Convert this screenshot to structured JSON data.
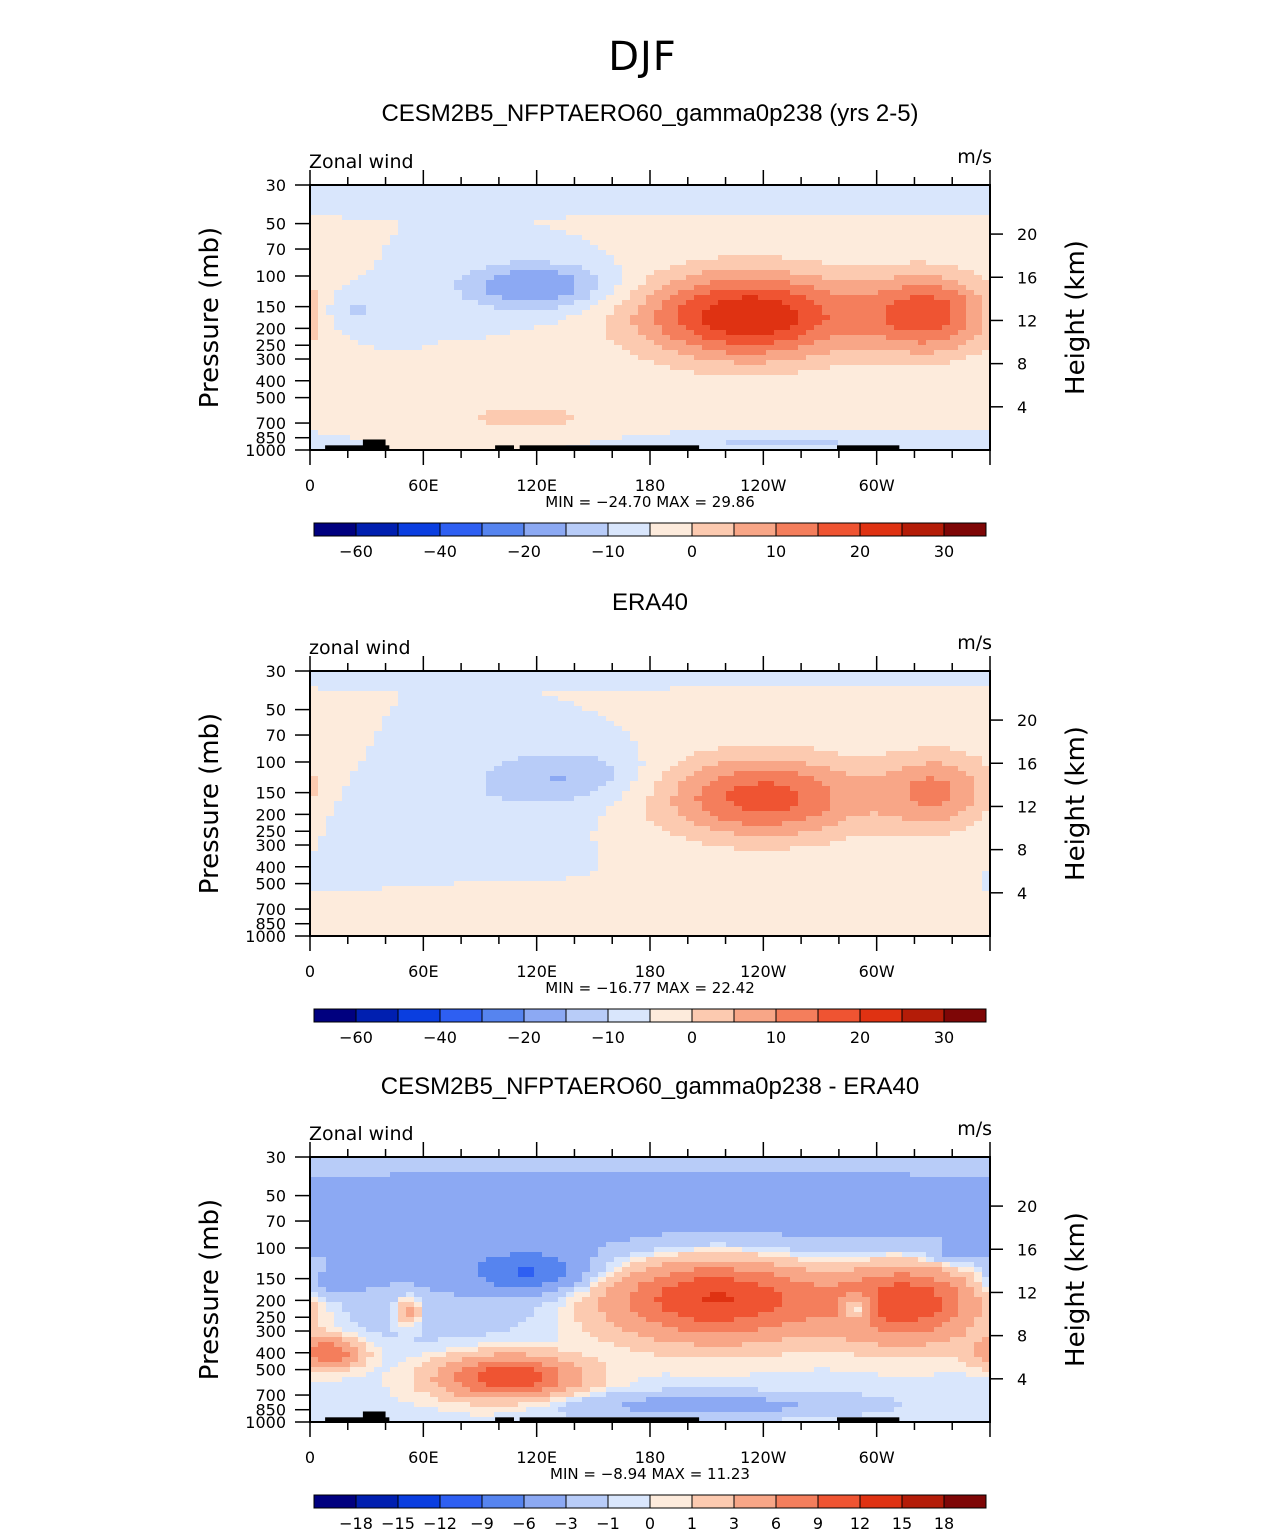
{
  "figure": {
    "title": "DJF",
    "colors": {
      "wind_scale": [
        "#00007f",
        "#001fb0",
        "#0a3ee0",
        "#2e5ff2",
        "#5684ef",
        "#8ca9f3",
        "#b8ccf8",
        "#d9e6fc",
        "#fdebdc",
        "#fccab0",
        "#f8a687",
        "#f47e5c",
        "#ef5432",
        "#df3212",
        "#b41c08",
        "#7e0606"
      ],
      "diff_scale": [
        "#00007f",
        "#001fb0",
        "#0a3ee0",
        "#2e5ff2",
        "#5684ef",
        "#8ca9f3",
        "#b8ccf8",
        "#d9e6fc",
        "#fdebdc",
        "#fccab0",
        "#f8a687",
        "#f47e5c",
        "#ef5432",
        "#df3212",
        "#b41c08",
        "#7e0606"
      ],
      "topography": "#000000"
    }
  },
  "chart_data": [
    {
      "type": "heatmap",
      "title": "CESM2B5_NFPTAERO60_gamma0p238 (yrs 2-5)",
      "left_label": "Zonal wind",
      "right_label": "m/s",
      "ylabel": "Pressure (mb)",
      "ylabel2": "Height (km)",
      "xlabel": "",
      "x_ticks": [
        "0",
        "60E",
        "120E",
        "180",
        "120W",
        "60W"
      ],
      "x_range_deg": [
        0,
        360
      ],
      "y_ticks": [
        "30",
        "50",
        "70",
        "100",
        "150",
        "200",
        "250",
        "300",
        "400",
        "500",
        "700",
        "850",
        "1000"
      ],
      "y2_ticks": [
        "20",
        "16",
        "12",
        "8",
        "4"
      ],
      "ylim_mb": [
        30,
        1000
      ],
      "stats_text": "MIN = −24.70   MAX =  29.86",
      "min": -24.7,
      "max": 29.86,
      "colorbar_labels": [
        "−60",
        "−40",
        "−20",
        "−10",
        "0",
        "10",
        "20",
        "30"
      ],
      "colorbar_label_edges": [
        1,
        3,
        5,
        7,
        9,
        11,
        13,
        15
      ],
      "features": [
        {
          "lon": 120,
          "p": 115,
          "value": -16,
          "lon_sigma": 28,
          "logp_sigma": 0.22
        },
        {
          "lon": 22,
          "p": 160,
          "value": -7,
          "lon_sigma": 14,
          "logp_sigma": 0.2
        },
        {
          "lon": 232,
          "p": 170,
          "value": 29.86,
          "lon_sigma": 42,
          "logp_sigma": 0.42
        },
        {
          "lon": 328,
          "p": 165,
          "value": 22,
          "lon_sigma": 24,
          "logp_sigma": 0.38
        },
        {
          "lon": 115,
          "p": 650,
          "value": 7,
          "lon_sigma": 30,
          "logp_sigma": 0.14
        },
        {
          "lon": 250,
          "p": 920,
          "value": -7,
          "lon_sigma": 40,
          "logp_sigma": 0.06
        },
        {
          "lon": 200,
          "p": 35,
          "value": -5,
          "lon_sigma": 300,
          "logp_sigma": 0.08
        }
      ],
      "topography": [
        {
          "lon0": 8,
          "lon1": 42,
          "top_mb": 940
        },
        {
          "lon0": 28,
          "lon1": 40,
          "top_mb": 870
        },
        {
          "lon0": 98,
          "lon1": 108,
          "top_mb": 940
        },
        {
          "lon0": 111,
          "lon1": 206,
          "top_mb": 940
        },
        {
          "lon0": 279,
          "lon1": 312,
          "top_mb": 940
        }
      ]
    },
    {
      "type": "heatmap",
      "title": "ERA40",
      "left_label": "zonal wind",
      "right_label": "m/s",
      "ylabel": "Pressure (mb)",
      "ylabel2": "Height (km)",
      "xlabel": "",
      "x_ticks": [
        "0",
        "60E",
        "120E",
        "180",
        "120W",
        "60W"
      ],
      "x_range_deg": [
        0,
        360
      ],
      "y_ticks": [
        "30",
        "50",
        "70",
        "100",
        "150",
        "200",
        "250",
        "300",
        "400",
        "500",
        "700",
        "850",
        "1000"
      ],
      "y2_ticks": [
        "20",
        "16",
        "12",
        "8",
        "4"
      ],
      "ylim_mb": [
        30,
        1000
      ],
      "stats_text": "MIN = −16.77   MAX =  22.42",
      "min": -16.77,
      "max": 22.42,
      "colorbar_labels": [
        "−60",
        "−40",
        "−20",
        "−10",
        "0",
        "10",
        "20",
        "30"
      ],
      "colorbar_label_edges": [
        1,
        3,
        5,
        7,
        9,
        11,
        13,
        15
      ],
      "features": [
        {
          "lon": 135,
          "p": 120,
          "value": -10,
          "lon_sigma": 30,
          "logp_sigma": 0.25
        },
        {
          "lon": 240,
          "p": 160,
          "value": 22.42,
          "lon_sigma": 40,
          "logp_sigma": 0.4
        },
        {
          "lon": 333,
          "p": 150,
          "value": 16,
          "lon_sigma": 22,
          "logp_sigma": 0.38
        },
        {
          "lon": 60,
          "p": 200,
          "value": -4,
          "lon_sigma": 55,
          "logp_sigma": 0.35
        },
        {
          "lon": 120,
          "p": 700,
          "value": 4,
          "lon_sigma": 40,
          "logp_sigma": 0.14
        },
        {
          "lon": 200,
          "p": 32,
          "value": -4,
          "lon_sigma": 150,
          "logp_sigma": 0.05
        }
      ],
      "topography": []
    },
    {
      "type": "heatmap",
      "title": "CESM2B5_NFPTAERO60_gamma0p238 - ERA40",
      "left_label": "Zonal wind",
      "right_label": "m/s",
      "ylabel": "Pressure (mb)",
      "ylabel2": "Height (km)",
      "xlabel": "",
      "x_ticks": [
        "0",
        "60E",
        "120E",
        "180",
        "120W",
        "60W"
      ],
      "x_range_deg": [
        0,
        360
      ],
      "y_ticks": [
        "30",
        "50",
        "70",
        "100",
        "150",
        "200",
        "250",
        "300",
        "400",
        "500",
        "700",
        "850",
        "1000"
      ],
      "y2_ticks": [
        "20",
        "16",
        "12",
        "8",
        "4"
      ],
      "ylim_mb": [
        30,
        1000
      ],
      "stats_text": "MIN =   −8.94   MAX =  11.23",
      "min": -8.94,
      "max": 11.23,
      "colorbar_labels": [
        "−18",
        "−15",
        "−12",
        "−9",
        "−6",
        "−3",
        "−1",
        "0",
        "1",
        "3",
        "6",
        "9",
        "12",
        "15",
        "18"
      ],
      "colorbar_label_edges": [
        1,
        2,
        3,
        4,
        5,
        6,
        7,
        8,
        9,
        10,
        11,
        12,
        13,
        14,
        15
      ],
      "features": [
        {
          "lon": 180,
          "p": 80,
          "value": -4.5,
          "lon_sigma": 400,
          "logp_sigma": 0.9
        },
        {
          "lon": 118,
          "p": 140,
          "value": -6.5,
          "lon_sigma": 22,
          "logp_sigma": 0.18
        },
        {
          "lon": 12,
          "p": 160,
          "value": -4,
          "lon_sigma": 10,
          "logp_sigma": 0.12
        },
        {
          "lon": 340,
          "p": 110,
          "value": -3,
          "lon_sigma": 10,
          "logp_sigma": 0.08
        },
        {
          "lon": 215,
          "p": 190,
          "value": 15,
          "lon_sigma": 45,
          "logp_sigma": 0.4
        },
        {
          "lon": 318,
          "p": 200,
          "value": 13,
          "lon_sigma": 28,
          "logp_sigma": 0.38
        },
        {
          "lon": 290,
          "p": 220,
          "value": -8,
          "lon_sigma": 6,
          "logp_sigma": 0.12
        },
        {
          "lon": 105,
          "p": 550,
          "value": 12,
          "lon_sigma": 25,
          "logp_sigma": 0.2
        },
        {
          "lon": 10,
          "p": 400,
          "value": 9,
          "lon_sigma": 12,
          "logp_sigma": 0.14
        },
        {
          "lon": 52,
          "p": 230,
          "value": 6,
          "lon_sigma": 5,
          "logp_sigma": 0.14
        },
        {
          "lon": 210,
          "p": 800,
          "value": -4,
          "lon_sigma": 60,
          "logp_sigma": 0.12
        }
      ],
      "topography": [
        {
          "lon0": 8,
          "lon1": 42,
          "top_mb": 940
        },
        {
          "lon0": 28,
          "lon1": 40,
          "top_mb": 870
        },
        {
          "lon0": 98,
          "lon1": 108,
          "top_mb": 940
        },
        {
          "lon0": 111,
          "lon1": 206,
          "top_mb": 940
        },
        {
          "lon0": 279,
          "lon1": 312,
          "top_mb": 940
        }
      ]
    }
  ]
}
